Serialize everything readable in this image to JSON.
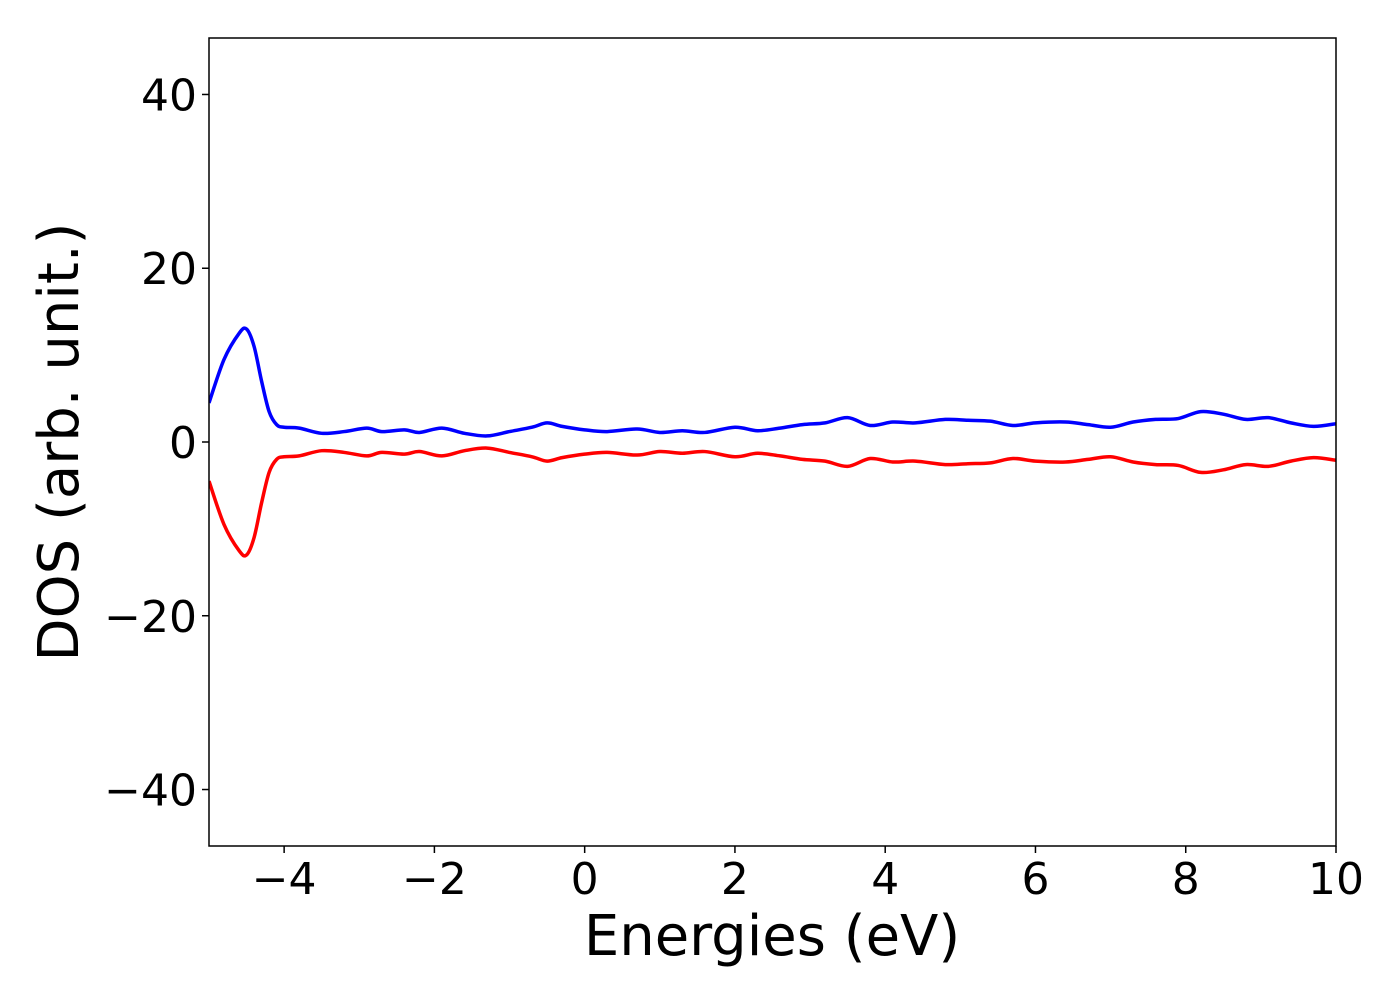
{
  "chart_data": {
    "type": "line",
    "title": "",
    "xlabel": "Energies (eV)",
    "ylabel": "DOS (arb. unit.)",
    "xlim": [
      -5,
      10
    ],
    "ylim": [
      -46.5,
      46.5
    ],
    "xticks": [
      -4,
      -2,
      0,
      2,
      4,
      6,
      8,
      10
    ],
    "xtick_labels": [
      "−4",
      "−2",
      "0",
      "2",
      "4",
      "6",
      "8",
      "10"
    ],
    "yticks": [
      40,
      20,
      0,
      -20,
      -40
    ],
    "ytick_labels": [
      "40",
      "20",
      "0",
      "−20",
      "−40"
    ],
    "grid": false,
    "legend": "none",
    "series": [
      {
        "color": "#0000ff",
        "x": [
          -5.0,
          -4.8,
          -4.6,
          -4.5,
          -4.4,
          -4.3,
          -4.2,
          -4.1,
          -4.0,
          -3.8,
          -3.5,
          -3.2,
          -2.9,
          -2.7,
          -2.4,
          -2.2,
          -1.9,
          -1.6,
          -1.3,
          -1.0,
          -0.7,
          -0.5,
          -0.3,
          0.0,
          0.3,
          0.7,
          1.0,
          1.3,
          1.6,
          2.0,
          2.3,
          2.6,
          2.9,
          3.2,
          3.5,
          3.8,
          4.1,
          4.4,
          4.8,
          5.1,
          5.4,
          5.7,
          6.0,
          6.4,
          6.7,
          7.0,
          7.3,
          7.6,
          7.9,
          8.2,
          8.5,
          8.8,
          9.1,
          9.4,
          9.7,
          10.0
        ],
        "y": [
          4.5,
          9.5,
          12.5,
          13.0,
          11.0,
          7.0,
          3.5,
          2.0,
          1.7,
          1.6,
          1.0,
          1.2,
          1.6,
          1.2,
          1.4,
          1.1,
          1.6,
          1.0,
          0.7,
          1.2,
          1.7,
          2.2,
          1.8,
          1.4,
          1.2,
          1.5,
          1.1,
          1.3,
          1.1,
          1.7,
          1.3,
          1.6,
          2.0,
          2.2,
          2.8,
          1.9,
          2.3,
          2.2,
          2.6,
          2.5,
          2.4,
          1.9,
          2.2,
          2.3,
          2.0,
          1.7,
          2.3,
          2.6,
          2.7,
          3.5,
          3.2,
          2.6,
          2.8,
          2.2,
          1.8,
          2.1
        ]
      },
      {
        "color": "#ff0000",
        "x": [
          -5.0,
          -4.8,
          -4.6,
          -4.5,
          -4.4,
          -4.3,
          -4.2,
          -4.1,
          -4.0,
          -3.8,
          -3.5,
          -3.2,
          -2.9,
          -2.7,
          -2.4,
          -2.2,
          -1.9,
          -1.6,
          -1.3,
          -1.0,
          -0.7,
          -0.5,
          -0.3,
          0.0,
          0.3,
          0.7,
          1.0,
          1.3,
          1.6,
          2.0,
          2.3,
          2.6,
          2.9,
          3.2,
          3.5,
          3.8,
          4.1,
          4.4,
          4.8,
          5.1,
          5.4,
          5.7,
          6.0,
          6.4,
          6.7,
          7.0,
          7.3,
          7.6,
          7.9,
          8.2,
          8.5,
          8.8,
          9.1,
          9.4,
          9.7,
          10.0
        ],
        "y": [
          -4.5,
          -9.5,
          -12.5,
          -13.0,
          -11.0,
          -7.0,
          -3.5,
          -2.0,
          -1.7,
          -1.6,
          -1.0,
          -1.2,
          -1.6,
          -1.2,
          -1.4,
          -1.1,
          -1.6,
          -1.0,
          -0.7,
          -1.2,
          -1.7,
          -2.2,
          -1.8,
          -1.4,
          -1.2,
          -1.5,
          -1.1,
          -1.3,
          -1.1,
          -1.7,
          -1.3,
          -1.6,
          -2.0,
          -2.2,
          -2.8,
          -1.9,
          -2.3,
          -2.2,
          -2.6,
          -2.5,
          -2.4,
          -1.9,
          -2.2,
          -2.3,
          -2.0,
          -1.7,
          -2.3,
          -2.6,
          -2.7,
          -3.5,
          -3.2,
          -2.6,
          -2.8,
          -2.2,
          -1.8,
          -2.1
        ]
      }
    ]
  }
}
